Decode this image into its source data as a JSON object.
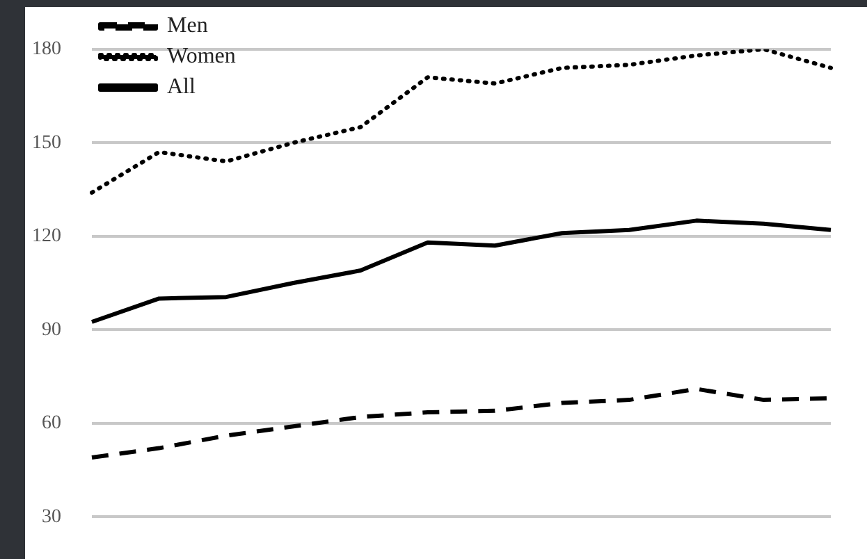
{
  "chart_data": {
    "type": "line",
    "categories": [
      null,
      null,
      null,
      null,
      null,
      null,
      null,
      null,
      null,
      null,
      null,
      null
    ],
    "series": [
      {
        "name": "Men",
        "color": "#000000",
        "line_style": "dashed",
        "values": [
          49,
          52,
          56,
          59,
          62,
          63.5,
          64,
          66.5,
          67.5,
          71,
          67.5,
          68
        ]
      },
      {
        "name": "Women",
        "color": "#000000",
        "line_style": "dotted",
        "values": [
          134,
          147,
          144,
          150,
          155,
          171,
          169,
          174,
          175,
          178,
          180,
          174
        ]
      },
      {
        "name": "All",
        "color": "#000000",
        "line_style": "solid",
        "values": [
          92.5,
          100,
          100.5,
          105,
          109,
          118,
          117,
          121,
          122,
          125,
          124,
          122
        ]
      }
    ],
    "ylim": [
      30,
      180
    ],
    "yticks": [
      30,
      60,
      90,
      120,
      150,
      180
    ],
    "grid": "y",
    "legend": "top left",
    "marker": "none"
  }
}
